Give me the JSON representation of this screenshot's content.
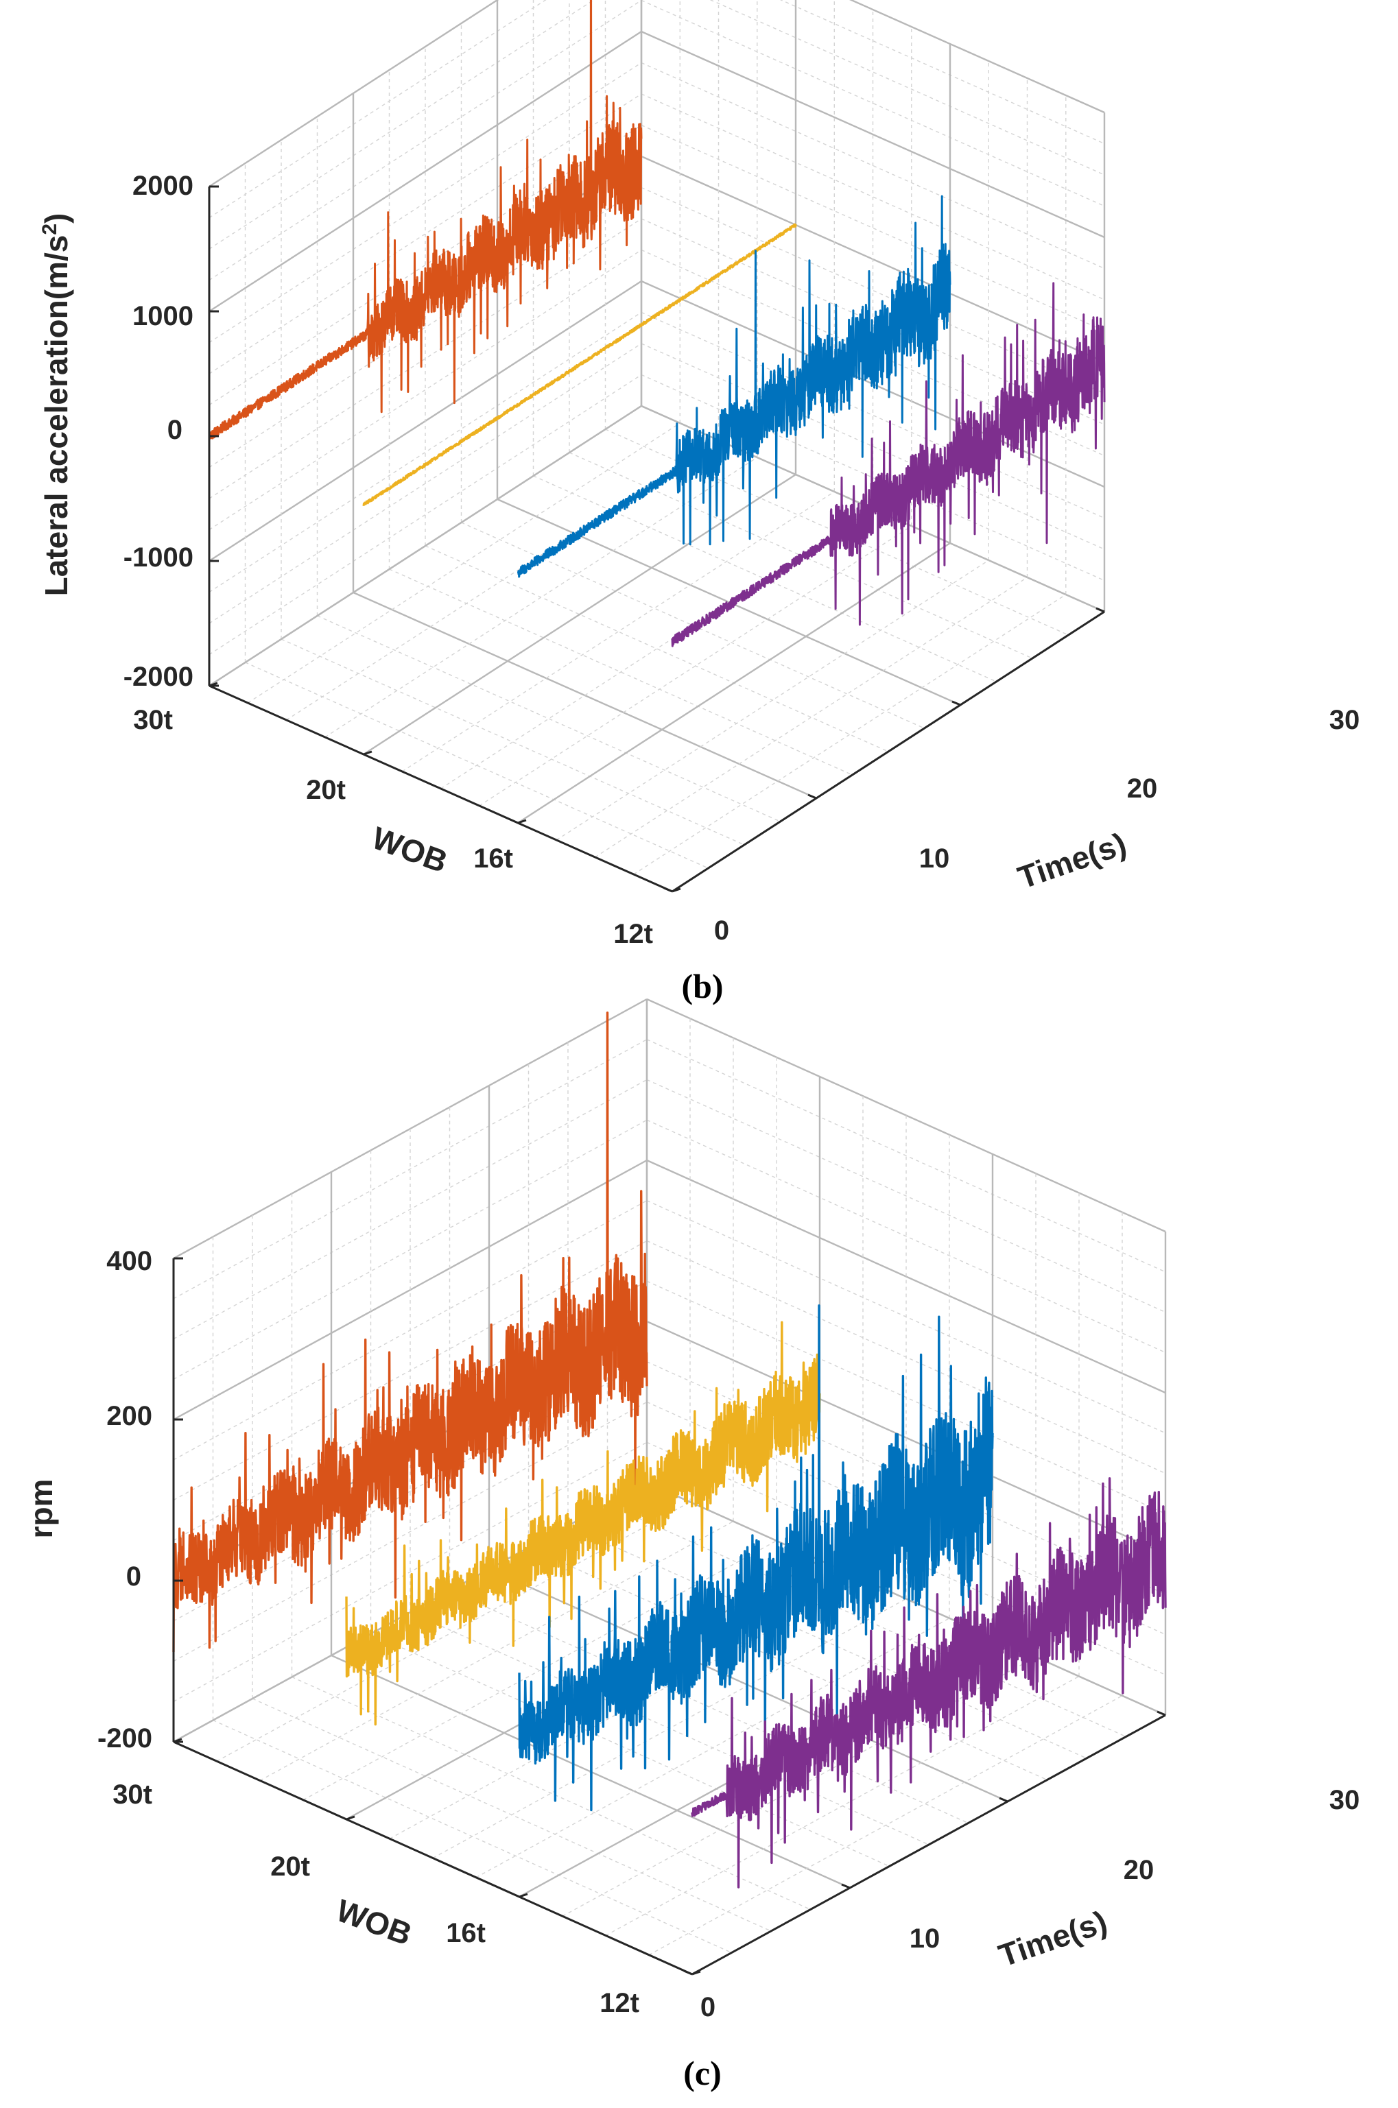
{
  "chart_data": [
    {
      "panel": "(b)",
      "type": "line",
      "view": "3d",
      "xlabel": "Time(s)",
      "ylabel": "WOB",
      "zlabel": "Lateral acceleration(m/s",
      "zlabel_superscript": "2",
      "zlabel_suffix": ")",
      "xticks": [
        "0",
        "10",
        "20",
        "30"
      ],
      "yticks": [
        "30t",
        "20t",
        "16t",
        "12t"
      ],
      "zticks": [
        "2000",
        "1000",
        "0",
        "-1000",
        "-2000"
      ],
      "xlim": [
        0,
        30
      ],
      "zlim": [
        -2000,
        2000
      ],
      "grid": true,
      "series": [
        {
          "name": "30t",
          "color": "#D95319",
          "duration": 30,
          "quiet_until": 11,
          "quiet_amplitude": 40,
          "base_amplitude": 220,
          "growth": 170,
          "spike_every": 23,
          "spike_amplitude": 750,
          "peak_time": 26.5,
          "peak_value": 1900
        },
        {
          "name": "20t",
          "color": "#EDB120",
          "duration": 30,
          "quiet_until": 30,
          "quiet_amplitude": 12,
          "base_amplitude": 12,
          "growth": 0,
          "spike_every": 0,
          "spike_amplitude": 0,
          "peak_time": 0,
          "peak_value": 0
        },
        {
          "name": "16t",
          "color": "#0072BD",
          "duration": 30,
          "quiet_until": 11,
          "quiet_amplitude": 40,
          "base_amplitude": 210,
          "growth": 170,
          "spike_every": 23,
          "spike_amplitude": 750,
          "peak_time": 16.5,
          "peak_value": 1350
        },
        {
          "name": "12t",
          "color": "#7E2F8E",
          "duration": 30,
          "quiet_until": 11,
          "quiet_amplitude": 40,
          "base_amplitude": 200,
          "growth": 140,
          "spike_every": 21,
          "spike_amplitude": 750,
          "peak_time": 26,
          "peak_value": -1150
        }
      ]
    },
    {
      "panel": "(c)",
      "type": "line",
      "view": "3d",
      "xlabel": "Time(s)",
      "ylabel": "WOB",
      "zlabel": "rpm",
      "zlabel_superscript": "",
      "zlabel_suffix": "",
      "xticks": [
        "0",
        "10",
        "20",
        "30"
      ],
      "yticks": [
        "30t",
        "20t",
        "16t",
        "12t"
      ],
      "zticks": [
        "400",
        "200",
        "0",
        "-200"
      ],
      "xlim": [
        0,
        30
      ],
      "zlim": [
        -200,
        400
      ],
      "grid": true,
      "series": [
        {
          "name": "30t",
          "color": "#D95319",
          "duration": 30,
          "quiet_until": 0,
          "quiet_amplitude": 0,
          "base_amplitude": 42,
          "growth": 50,
          "spike_every": 19,
          "spike_amplitude": 110,
          "peak_time": 27.5,
          "peak_value": 410
        },
        {
          "name": "20t",
          "color": "#EDB120",
          "duration": 30,
          "quiet_until": 0,
          "quiet_amplitude": 0,
          "base_amplitude": 30,
          "growth": 25,
          "spike_every": 23,
          "spike_amplitude": 70,
          "peak_time": 0,
          "peak_value": 0
        },
        {
          "name": "16t",
          "color": "#0072BD",
          "duration": 30,
          "quiet_until": 0,
          "quiet_amplitude": 0,
          "base_amplitude": 36,
          "growth": 75,
          "spike_every": 19,
          "spike_amplitude": 130,
          "peak_time": 19,
          "peak_value": 330
        },
        {
          "name": "12t",
          "color": "#7E2F8E",
          "duration": 30,
          "quiet_until": 2.2,
          "quiet_amplitude": 5,
          "base_amplitude": 38,
          "growth": 38,
          "spike_every": 21,
          "spike_amplitude": 95,
          "peak_time": 0,
          "peak_value": 0
        }
      ]
    }
  ]
}
